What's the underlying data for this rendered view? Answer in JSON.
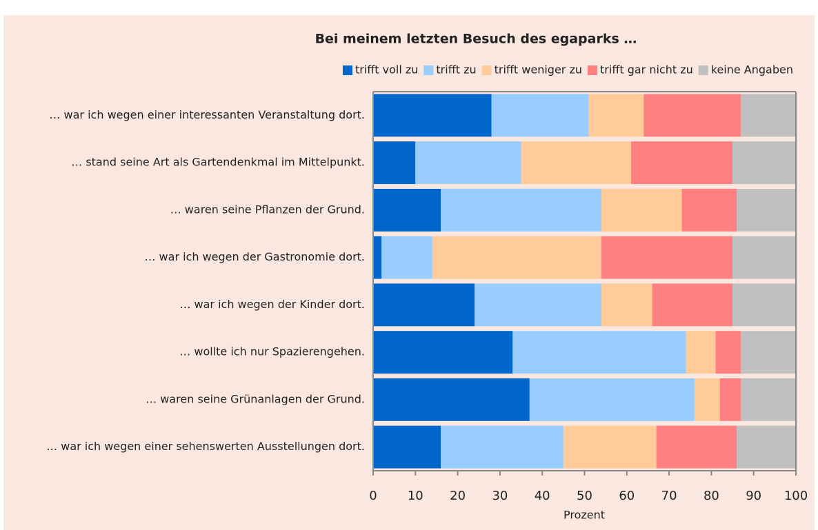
{
  "chart_data": {
    "type": "stacked_bar_horizontal",
    "title": "Bei meinem letzten Besuch des egaparks …",
    "x_label": "Prozent",
    "categories": [
      "… war ich wegen einer interessanten Veranstaltung dort.",
      "… stand seine Art als Gartendenkmal im Mittelpunkt.",
      "… waren seine Pflanzen der Grund.",
      "… war ich wegen der Gastronomie dort.",
      "… war ich wegen der Kinder dort.",
      "… wollte ich nur Spazierengehen.",
      "… waren seine Grünanlagen der Grund.",
      "… war ich wegen einer sehenswerten Ausstellungen dort."
    ],
    "series": [
      {
        "name": "trifft voll zu",
        "color": "#0066cc",
        "values": [
          28,
          10,
          16,
          2,
          24,
          33,
          37,
          16
        ]
      },
      {
        "name": "trifft zu",
        "color": "#99ccff",
        "values": [
          23,
          25,
          38,
          12,
          30,
          41,
          39,
          29
        ]
      },
      {
        "name": "trifft weniger zu",
        "color": "#ffcc99",
        "values": [
          13,
          26,
          19,
          40,
          12,
          7,
          6,
          22
        ]
      },
      {
        "name": "trifft gar nicht zu",
        "color": "#ff8080",
        "values": [
          23,
          24,
          13,
          31,
          19,
          6,
          5,
          19
        ]
      },
      {
        "name": "keine Angaben",
        "color": "#c0c0c0",
        "values": [
          13,
          15,
          14,
          15,
          15,
          13,
          13,
          14
        ]
      }
    ],
    "xlim": [
      0,
      100
    ],
    "xticks": [
      0,
      10,
      20,
      30,
      40,
      50,
      60,
      70,
      80,
      90,
      100
    ],
    "legend": "top"
  }
}
